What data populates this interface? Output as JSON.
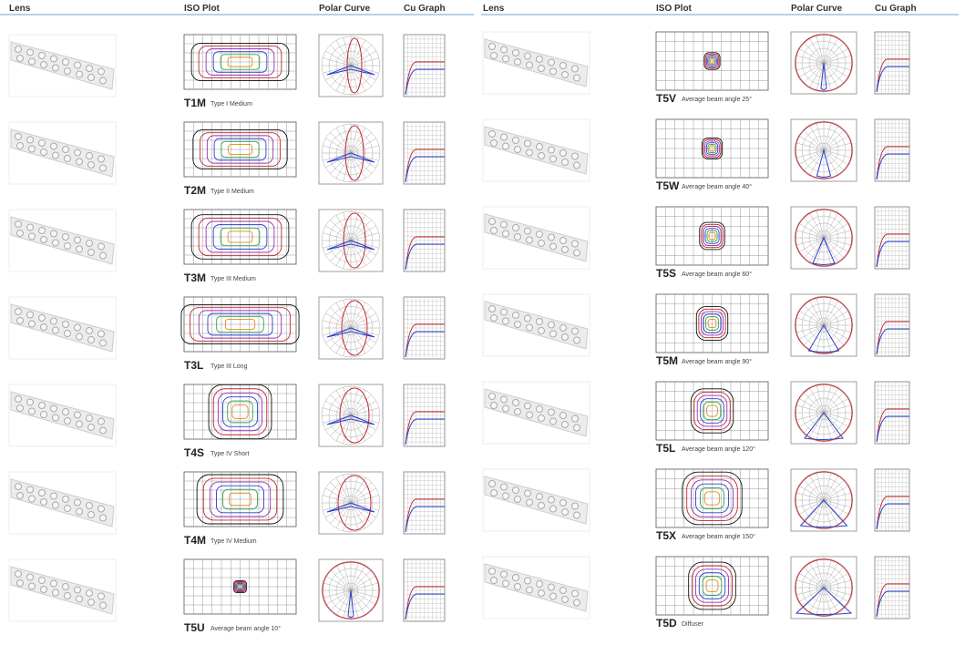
{
  "left": {
    "headers": [
      "Lens",
      "ISO Plot",
      "Polar Curve",
      "Cu Graph"
    ],
    "rows": [
      {
        "code": "T1M",
        "desc": "Type I  Medium"
      },
      {
        "code": "T2M",
        "desc": "Type II  Medium"
      },
      {
        "code": "T3M",
        "desc": "Type III Medium"
      },
      {
        "code": "T3L",
        "desc": "Type III  Long"
      },
      {
        "code": "T4S",
        "desc": "Type IV  Short"
      },
      {
        "code": "T4M",
        "desc": "Type IV  Medium"
      },
      {
        "code": "T5U",
        "desc": "Average beam angle 10°"
      }
    ]
  },
  "right": {
    "headers": [
      "Lens",
      "ISO Plot",
      "Polar Curve",
      "Cu Graph"
    ],
    "rows": [
      {
        "code": "T5V",
        "desc": "Average beam angle 25°"
      },
      {
        "code": "T5W",
        "desc": "Average beam angle 40°"
      },
      {
        "code": "T5S",
        "desc": "Average beam angle 60°"
      },
      {
        "code": "T5M",
        "desc": "Average beam angle 90°"
      },
      {
        "code": "T5L",
        "desc": "Average beam angle 120°"
      },
      {
        "code": "T5X",
        "desc": "Average beam angle 150°"
      },
      {
        "code": "T5D",
        "desc": "Diffuser"
      }
    ]
  }
}
